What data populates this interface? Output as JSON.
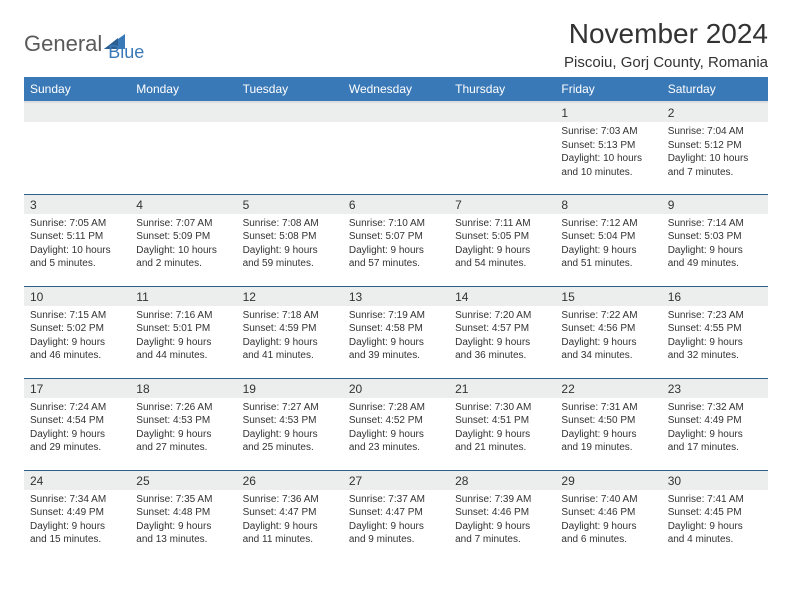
{
  "logo": {
    "text1": "General",
    "text2": "Blue"
  },
  "title": "November 2024",
  "location": "Piscoiu, Gorj County, Romania",
  "colors": {
    "header_bg": "#3a79b7",
    "header_text": "#ffffff",
    "daynum_bg": "#eceded",
    "border": "#2f5f8f",
    "text": "#333333",
    "logo_gray": "#5a5a5a",
    "logo_blue": "#3a79b7",
    "page_bg": "#ffffff"
  },
  "weekdays": [
    "Sunday",
    "Monday",
    "Tuesday",
    "Wednesday",
    "Thursday",
    "Friday",
    "Saturday"
  ],
  "weeks": [
    [
      null,
      null,
      null,
      null,
      null,
      {
        "n": "1",
        "sr": "7:03 AM",
        "ss": "5:13 PM",
        "dl": "10 hours and 10 minutes."
      },
      {
        "n": "2",
        "sr": "7:04 AM",
        "ss": "5:12 PM",
        "dl": "10 hours and 7 minutes."
      }
    ],
    [
      {
        "n": "3",
        "sr": "7:05 AM",
        "ss": "5:11 PM",
        "dl": "10 hours and 5 minutes."
      },
      {
        "n": "4",
        "sr": "7:07 AM",
        "ss": "5:09 PM",
        "dl": "10 hours and 2 minutes."
      },
      {
        "n": "5",
        "sr": "7:08 AM",
        "ss": "5:08 PM",
        "dl": "9 hours and 59 minutes."
      },
      {
        "n": "6",
        "sr": "7:10 AM",
        "ss": "5:07 PM",
        "dl": "9 hours and 57 minutes."
      },
      {
        "n": "7",
        "sr": "7:11 AM",
        "ss": "5:05 PM",
        "dl": "9 hours and 54 minutes."
      },
      {
        "n": "8",
        "sr": "7:12 AM",
        "ss": "5:04 PM",
        "dl": "9 hours and 51 minutes."
      },
      {
        "n": "9",
        "sr": "7:14 AM",
        "ss": "5:03 PM",
        "dl": "9 hours and 49 minutes."
      }
    ],
    [
      {
        "n": "10",
        "sr": "7:15 AM",
        "ss": "5:02 PM",
        "dl": "9 hours and 46 minutes."
      },
      {
        "n": "11",
        "sr": "7:16 AM",
        "ss": "5:01 PM",
        "dl": "9 hours and 44 minutes."
      },
      {
        "n": "12",
        "sr": "7:18 AM",
        "ss": "4:59 PM",
        "dl": "9 hours and 41 minutes."
      },
      {
        "n": "13",
        "sr": "7:19 AM",
        "ss": "4:58 PM",
        "dl": "9 hours and 39 minutes."
      },
      {
        "n": "14",
        "sr": "7:20 AM",
        "ss": "4:57 PM",
        "dl": "9 hours and 36 minutes."
      },
      {
        "n": "15",
        "sr": "7:22 AM",
        "ss": "4:56 PM",
        "dl": "9 hours and 34 minutes."
      },
      {
        "n": "16",
        "sr": "7:23 AM",
        "ss": "4:55 PM",
        "dl": "9 hours and 32 minutes."
      }
    ],
    [
      {
        "n": "17",
        "sr": "7:24 AM",
        "ss": "4:54 PM",
        "dl": "9 hours and 29 minutes."
      },
      {
        "n": "18",
        "sr": "7:26 AM",
        "ss": "4:53 PM",
        "dl": "9 hours and 27 minutes."
      },
      {
        "n": "19",
        "sr": "7:27 AM",
        "ss": "4:53 PM",
        "dl": "9 hours and 25 minutes."
      },
      {
        "n": "20",
        "sr": "7:28 AM",
        "ss": "4:52 PM",
        "dl": "9 hours and 23 minutes."
      },
      {
        "n": "21",
        "sr": "7:30 AM",
        "ss": "4:51 PM",
        "dl": "9 hours and 21 minutes."
      },
      {
        "n": "22",
        "sr": "7:31 AM",
        "ss": "4:50 PM",
        "dl": "9 hours and 19 minutes."
      },
      {
        "n": "23",
        "sr": "7:32 AM",
        "ss": "4:49 PM",
        "dl": "9 hours and 17 minutes."
      }
    ],
    [
      {
        "n": "24",
        "sr": "7:34 AM",
        "ss": "4:49 PM",
        "dl": "9 hours and 15 minutes."
      },
      {
        "n": "25",
        "sr": "7:35 AM",
        "ss": "4:48 PM",
        "dl": "9 hours and 13 minutes."
      },
      {
        "n": "26",
        "sr": "7:36 AM",
        "ss": "4:47 PM",
        "dl": "9 hours and 11 minutes."
      },
      {
        "n": "27",
        "sr": "7:37 AM",
        "ss": "4:47 PM",
        "dl": "9 hours and 9 minutes."
      },
      {
        "n": "28",
        "sr": "7:39 AM",
        "ss": "4:46 PM",
        "dl": "9 hours and 7 minutes."
      },
      {
        "n": "29",
        "sr": "7:40 AM",
        "ss": "4:46 PM",
        "dl": "9 hours and 6 minutes."
      },
      {
        "n": "30",
        "sr": "7:41 AM",
        "ss": "4:45 PM",
        "dl": "9 hours and 4 minutes."
      }
    ]
  ],
  "labels": {
    "sunrise": "Sunrise:",
    "sunset": "Sunset:",
    "daylight": "Daylight:"
  }
}
